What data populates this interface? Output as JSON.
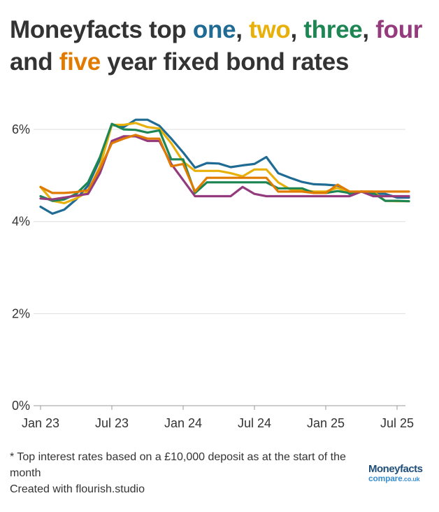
{
  "title": {
    "prefix": "Moneyfacts top ",
    "w1": "one",
    "sep1": ", ",
    "w2": "two",
    "sep2": ", ",
    "w3": "three",
    "sep3": ", ",
    "w4": "four",
    "line2_start": "and ",
    "w5": "five",
    "suffix": " year fixed bond rates"
  },
  "colors": {
    "one": "#1f6b94",
    "two": "#e8b00a",
    "three": "#1d8653",
    "four": "#943b7d",
    "five": "#e07b00",
    "grid": "#dddddd",
    "axis": "#999999"
  },
  "footnote": {
    "line1": "* Top interest rates based on a £10,000 deposit as at the start of the month",
    "line2": "Created with flourish.studio"
  },
  "brand": {
    "top": "Moneyfacts",
    "bottom": "compare",
    "domain": ".co.uk"
  },
  "chart_data": {
    "type": "line",
    "x": [
      "Jan 23",
      "Feb 23",
      "Mar 23",
      "Apr 23",
      "May 23",
      "Jun 23",
      "Jul 23",
      "Aug 23",
      "Sep 23",
      "Oct 23",
      "Nov 23",
      "Dec 23",
      "Jan 24",
      "Feb 24",
      "Mar 24",
      "Apr 24",
      "May 24",
      "Jun 24",
      "Jul 24",
      "Aug 24",
      "Sep 24",
      "Oct 24",
      "Nov 24",
      "Dec 24",
      "Jan 25",
      "Feb 25",
      "Mar 25",
      "Apr 25",
      "May 25",
      "Jun 25",
      "Jul 25",
      "Aug 25"
    ],
    "x_ticks": [
      "Jan 23",
      "Jul 23",
      "Jan 24",
      "Jul 24",
      "Jan 25",
      "Jul 25"
    ],
    "y_ticks": [
      "0%",
      "2%",
      "4%",
      "6%"
    ],
    "ylim": [
      0,
      6.35
    ],
    "grid": true,
    "series": [
      {
        "name": "one",
        "color_key": "one",
        "values": [
          4.32,
          4.17,
          4.26,
          4.48,
          4.78,
          5.35,
          6.1,
          6.05,
          6.21,
          6.21,
          6.08,
          5.8,
          5.5,
          5.17,
          5.27,
          5.26,
          5.18,
          5.22,
          5.25,
          5.4,
          5.05,
          4.95,
          4.86,
          4.81,
          4.8,
          4.78,
          4.6,
          4.65,
          4.6,
          4.6,
          4.52,
          4.52
        ]
      },
      {
        "name": "two",
        "color_key": "two",
        "values": [
          4.75,
          4.45,
          4.4,
          4.5,
          4.65,
          5.2,
          6.1,
          6.1,
          6.14,
          6.05,
          6.02,
          5.7,
          5.3,
          5.1,
          5.1,
          5.1,
          5.05,
          4.98,
          5.13,
          5.13,
          4.85,
          4.7,
          4.68,
          4.65,
          4.65,
          4.73,
          4.62,
          4.65,
          4.65,
          4.45,
          4.44,
          4.44
        ]
      },
      {
        "name": "three",
        "color_key": "three",
        "values": [
          4.55,
          4.45,
          4.48,
          4.6,
          4.85,
          5.4,
          6.12,
          6.0,
          5.99,
          5.93,
          5.98,
          5.35,
          5.35,
          4.62,
          4.85,
          4.85,
          4.85,
          4.85,
          4.85,
          4.85,
          4.72,
          4.72,
          4.72,
          4.62,
          4.62,
          4.66,
          4.62,
          4.65,
          4.62,
          4.45,
          4.45,
          4.44
        ]
      },
      {
        "name": "four",
        "color_key": "four",
        "values": [
          4.5,
          4.48,
          4.52,
          4.56,
          4.6,
          5.05,
          5.75,
          5.85,
          5.85,
          5.75,
          5.75,
          5.25,
          4.9,
          4.55,
          4.55,
          4.55,
          4.55,
          4.75,
          4.6,
          4.55,
          4.55,
          4.55,
          4.55,
          4.55,
          4.55,
          4.55,
          4.55,
          4.65,
          4.55,
          4.55,
          4.55,
          4.55
        ]
      },
      {
        "name": "five",
        "color_key": "five",
        "values": [
          4.75,
          4.62,
          4.62,
          4.64,
          4.68,
          5.15,
          5.7,
          5.8,
          5.88,
          5.8,
          5.8,
          5.2,
          5.25,
          4.65,
          4.95,
          4.95,
          4.95,
          4.95,
          4.95,
          4.95,
          4.65,
          4.65,
          4.65,
          4.62,
          4.62,
          4.8,
          4.65,
          4.65,
          4.65,
          4.65,
          4.65,
          4.65
        ]
      }
    ]
  }
}
